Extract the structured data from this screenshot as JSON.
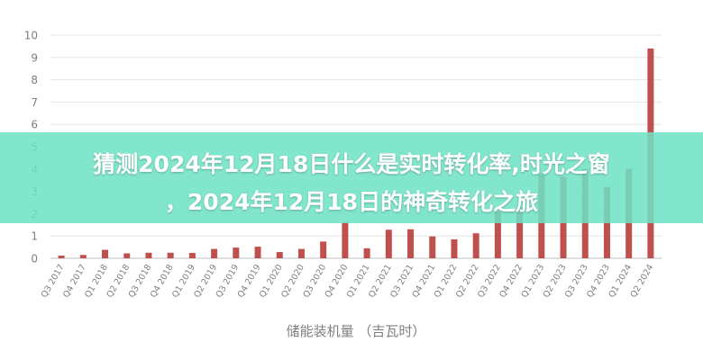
{
  "chart_data": {
    "type": "bar",
    "title": "",
    "xlabel": "储能装机量 （吉瓦时）",
    "ylabel": "",
    "ylim": [
      0,
      10
    ],
    "yticks": [
      0,
      1,
      2,
      3,
      4,
      5,
      6,
      7,
      8,
      9,
      10
    ],
    "grid": true,
    "bar_color": "#c0504d",
    "categories": [
      "Q3 2017",
      "Q4 2017",
      "Q1 2018",
      "Q2 2018",
      "Q3 2018",
      "Q4 2018",
      "Q1 2019",
      "Q2 2019",
      "Q3 2019",
      "Q4 2019",
      "Q1 2020",
      "Q2 2020",
      "Q3 2020",
      "Q4 2020",
      "Q1 2021",
      "Q2 2021",
      "Q3 2021",
      "Q4 2021",
      "Q1 2022",
      "Q2 2022",
      "Q3 2022",
      "Q4 2022",
      "Q1 2023",
      "Q2 2023",
      "Q3 2023",
      "Q4 2023",
      "Q1 2024",
      "Q2 2024"
    ],
    "values": [
      0.12,
      0.15,
      0.38,
      0.22,
      0.25,
      0.25,
      0.24,
      0.42,
      0.48,
      0.52,
      0.28,
      0.42,
      0.75,
      1.6,
      0.45,
      1.28,
      1.3,
      0.98,
      0.85,
      1.12,
      2.1,
      2.3,
      3.8,
      3.65,
      4.0,
      3.2,
      4.0,
      9.4
    ]
  },
  "banner": {
    "line1": "猜测2024年12月18日什么是实时转化率,时光之窗",
    "line2": "，2024年12月18日的神奇转化之旅",
    "color": "#6ee2c4"
  }
}
